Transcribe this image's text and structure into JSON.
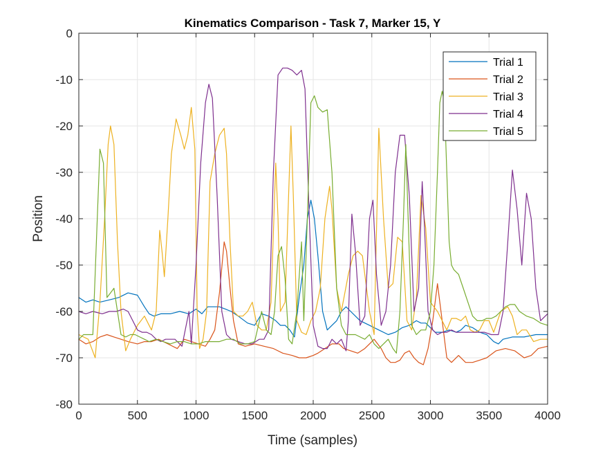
{
  "chart_data": {
    "type": "line",
    "title": "Kinematics Comparison - Task 7, Marker 15, Y",
    "xlabel": "Time (samples)",
    "ylabel": "Position",
    "xlim": [
      0,
      4000
    ],
    "ylim": [
      -80,
      0
    ],
    "xticks": [
      0,
      500,
      1000,
      1500,
      2000,
      2500,
      3000,
      3500,
      4000
    ],
    "yticks": [
      0,
      -10,
      -20,
      -30,
      -40,
      -50,
      -60,
      -70,
      -80
    ],
    "grid": true,
    "legend_position": "top-right",
    "series": [
      {
        "name": "Trial 1",
        "color": "#0072BD",
        "x": [
          0,
          60,
          120,
          180,
          260,
          340,
          420,
          500,
          560,
          600,
          640,
          700,
          780,
          860,
          940,
          1000,
          1050,
          1100,
          1200,
          1250,
          1300,
          1360,
          1440,
          1500,
          1560,
          1620,
          1680,
          1720,
          1760,
          1800,
          1840,
          1880,
          1920,
          1950,
          1980,
          2010,
          2040,
          2080,
          2120,
          2160,
          2200,
          2240,
          2280,
          2320,
          2400,
          2480,
          2560,
          2640,
          2700,
          2760,
          2820,
          2880,
          2920,
          2960,
          3000,
          3040,
          3100,
          3160,
          3220,
          3260,
          3300,
          3360,
          3420,
          3480,
          3540,
          3580,
          3620,
          3700,
          3800,
          3900,
          4000
        ],
        "y": [
          -57,
          -58,
          -57.5,
          -58,
          -57.5,
          -57,
          -56,
          -56.5,
          -59,
          -60.5,
          -61,
          -60.5,
          -60.5,
          -60,
          -60.5,
          -59.5,
          -60.5,
          -59,
          -59,
          -59.5,
          -60,
          -61,
          -62.5,
          -63,
          -60.5,
          -61,
          -62,
          -63,
          -63,
          -64,
          -65.5,
          -57,
          -50,
          -40,
          -36,
          -40,
          -48,
          -60,
          -64,
          -63,
          -62,
          -60,
          -59,
          -60,
          -62,
          -63,
          -64,
          -65,
          -64.5,
          -63.5,
          -63,
          -62,
          -62.5,
          -62.5,
          -63.5,
          -64.5,
          -64.5,
          -64,
          -64.5,
          -64,
          -63,
          -63.5,
          -64.5,
          -65,
          -66.5,
          -67,
          -66,
          -65.5,
          -65.5,
          -65,
          -65
        ]
      },
      {
        "name": "Trial 2",
        "color": "#D95319",
        "x": [
          0,
          60,
          120,
          180,
          240,
          300,
          360,
          420,
          500,
          560,
          620,
          680,
          760,
          840,
          900,
          960,
          1020,
          1080,
          1120,
          1160,
          1200,
          1240,
          1260,
          1290,
          1320,
          1360,
          1420,
          1500,
          1580,
          1660,
          1740,
          1820,
          1880,
          1940,
          2000,
          2040,
          2100,
          2160,
          2220,
          2260,
          2320,
          2380,
          2440,
          2480,
          2520,
          2580,
          2620,
          2660,
          2700,
          2740,
          2780,
          2820,
          2860,
          2900,
          2940,
          2980,
          3020,
          3060,
          3100,
          3140,
          3180,
          3240,
          3300,
          3360,
          3420,
          3480,
          3560,
          3640,
          3720,
          3800,
          3860,
          3920,
          4000
        ],
        "y": [
          -66,
          -67,
          -66.5,
          -65.5,
          -65,
          -65.5,
          -66,
          -66.5,
          -67,
          -66.5,
          -66.5,
          -66,
          -67,
          -68,
          -66,
          -66.5,
          -67,
          -67.5,
          -66,
          -64,
          -56,
          -45,
          -47,
          -55,
          -62,
          -67,
          -67.5,
          -67,
          -67.5,
          -68,
          -69,
          -69.5,
          -70,
          -70,
          -69.5,
          -69,
          -68,
          -67,
          -67,
          -68,
          -68.5,
          -69,
          -68,
          -67,
          -66,
          -68,
          -70,
          -71,
          -71,
          -70.5,
          -69,
          -68.5,
          -70,
          -71,
          -71.5,
          -68,
          -62,
          -54,
          -62,
          -70,
          -71,
          -69.5,
          -71,
          -71,
          -70.5,
          -70,
          -68.5,
          -68,
          -68.5,
          -70,
          -69.5,
          -68,
          -67.5
        ]
      },
      {
        "name": "Trial 3",
        "color": "#EDB120",
        "x": [
          0,
          80,
          140,
          180,
          220,
          250,
          270,
          300,
          330,
          360,
          400,
          440,
          500,
          560,
          620,
          660,
          690,
          710,
          730,
          760,
          790,
          830,
          870,
          900,
          930,
          960,
          990,
          1010,
          1030,
          1060,
          1090,
          1120,
          1160,
          1200,
          1240,
          1260,
          1290,
          1320,
          1360,
          1400,
          1440,
          1480,
          1520,
          1560,
          1600,
          1640,
          1680,
          1700,
          1720,
          1760,
          1790,
          1810,
          1830,
          1860,
          1900,
          1940,
          1980,
          2020,
          2060,
          2100,
          2140,
          2160,
          2200,
          2240,
          2300,
          2340,
          2380,
          2420,
          2480,
          2520,
          2560,
          2600,
          2640,
          2680,
          2720,
          2760,
          2800,
          2840,
          2880,
          2920,
          2960,
          3000,
          3060,
          3100,
          3140,
          3180,
          3220,
          3260,
          3300,
          3340,
          3380,
          3420,
          3460,
          3500,
          3540,
          3600,
          3660,
          3700,
          3740,
          3780,
          3820,
          3880,
          3940,
          4000
        ],
        "y": [
          -65,
          -66,
          -70,
          -58,
          -40,
          -24,
          -20,
          -24,
          -45,
          -60,
          -68.5,
          -66,
          -63,
          -61,
          -64,
          -60,
          -42.5,
          -47,
          -52.5,
          -40,
          -26,
          -18.5,
          -22,
          -25,
          -22,
          -16,
          -25,
          -60,
          -68,
          -66,
          -60,
          -32,
          -26,
          -22,
          -20.5,
          -26,
          -45,
          -60,
          -61,
          -61,
          -60,
          -58,
          -63,
          -64,
          -64,
          -58,
          -28,
          -40,
          -60,
          -58,
          -35,
          -20,
          -35,
          -62,
          -64.5,
          -65,
          -62,
          -60,
          -55,
          -40,
          -33,
          -38,
          -55,
          -60,
          -52,
          -48,
          -47,
          -48,
          -60,
          -65,
          -20.5,
          -40,
          -55,
          -54,
          -44,
          -45,
          -62,
          -64,
          -57,
          -35,
          -42,
          -58,
          -60,
          -62,
          -64,
          -61.5,
          -61.5,
          -62,
          -61,
          -64,
          -64.5,
          -64,
          -62,
          -62,
          -64.5,
          -60,
          -59,
          -61,
          -65,
          -64,
          -64,
          -66.5,
          -66,
          -66
        ]
      },
      {
        "name": "Trial 4",
        "color": "#7E2F8E",
        "x": [
          0,
          60,
          120,
          200,
          260,
          320,
          380,
          420,
          460,
          500,
          540,
          580,
          620,
          660,
          700,
          740,
          780,
          820,
          880,
          940,
          960,
          1000,
          1040,
          1080,
          1110,
          1140,
          1180,
          1220,
          1260,
          1300,
          1360,
          1420,
          1480,
          1540,
          1580,
          1620,
          1660,
          1700,
          1740,
          1780,
          1820,
          1860,
          1900,
          1930,
          1960,
          2000,
          2040,
          2080,
          2120,
          2160,
          2200,
          2240,
          2280,
          2300,
          2330,
          2360,
          2400,
          2440,
          2480,
          2510,
          2540,
          2580,
          2620,
          2660,
          2700,
          2740,
          2780,
          2820,
          2860,
          2900,
          2930,
          2950,
          2980,
          3020,
          3060,
          3100,
          3140,
          3180,
          3220,
          3260,
          3300,
          3340,
          3400,
          3460,
          3520,
          3580,
          3620,
          3660,
          3700,
          3740,
          3780,
          3820,
          3860,
          3900,
          3940,
          3980,
          4000
        ],
        "y": [
          -60,
          -60.5,
          -60,
          -60.5,
          -60,
          -60,
          -59.5,
          -60,
          -62,
          -64,
          -64.5,
          -64.5,
          -65,
          -66,
          -66.5,
          -66,
          -66,
          -66,
          -67.5,
          -60,
          -67,
          -50,
          -28,
          -15,
          -11,
          -14,
          -35,
          -60,
          -65,
          -66,
          -66.5,
          -67,
          -67,
          -66,
          -66,
          -64,
          -30,
          -9,
          -7.5,
          -7.5,
          -8,
          -9,
          -8,
          -12,
          -35,
          -63,
          -67.5,
          -68,
          -68,
          -66,
          -67,
          -66,
          -68.5,
          -62,
          -39,
          -47,
          -63,
          -61,
          -40,
          -36,
          -52,
          -63,
          -60,
          -50,
          -30,
          -22,
          -22,
          -35,
          -60,
          -55,
          -32,
          -42,
          -60,
          -64,
          -65,
          -64.5,
          -64.5,
          -64,
          -64.5,
          -64.5,
          -64.5,
          -64.5,
          -64.5,
          -64.5,
          -65,
          -65,
          -60,
          -45,
          -29.5,
          -38,
          -50,
          -34.5,
          -40,
          -55,
          -62,
          -61,
          -60.5
        ]
      },
      {
        "name": "Trial 5",
        "color": "#77AC30",
        "x": [
          0,
          40,
          80,
          120,
          150,
          180,
          210,
          240,
          270,
          300,
          330,
          360,
          400,
          440,
          480,
          520,
          560,
          600,
          660,
          720,
          780,
          840,
          900,
          960,
          1020,
          1080,
          1140,
          1200,
          1260,
          1320,
          1380,
          1440,
          1500,
          1560,
          1600,
          1640,
          1670,
          1700,
          1730,
          1760,
          1790,
          1820,
          1860,
          1900,
          1920,
          1950,
          1980,
          2010,
          2040,
          2080,
          2120,
          2160,
          2200,
          2240,
          2280,
          2320,
          2360,
          2400,
          2440,
          2480,
          2520,
          2560,
          2600,
          2640,
          2680,
          2710,
          2740,
          2770,
          2790,
          2810,
          2840,
          2880,
          2920,
          2960,
          3000,
          3030,
          3060,
          3080,
          3100,
          3120,
          3140,
          3160,
          3180,
          3200,
          3240,
          3280,
          3320,
          3360,
          3400,
          3440,
          3480,
          3520,
          3560,
          3600,
          3640,
          3680,
          3720,
          3760,
          3820,
          3880,
          3940,
          4000
        ],
        "y": [
          -66,
          -65,
          -65,
          -65,
          -45,
          -25,
          -28,
          -57,
          -56,
          -55,
          -60,
          -65,
          -65.5,
          -65,
          -65,
          -65.5,
          -66,
          -66.5,
          -66,
          -66.5,
          -67,
          -66.5,
          -66.5,
          -67,
          -67,
          -66.5,
          -66.5,
          -66.5,
          -66,
          -66,
          -67,
          -67,
          -66.5,
          -60,
          -64,
          -65,
          -60,
          -48,
          -46,
          -53,
          -66,
          -67,
          -60,
          -45,
          -62,
          -40,
          -15,
          -13.5,
          -16,
          -17,
          -16.5,
          -30,
          -55,
          -63,
          -65,
          -65,
          -65,
          -65.5,
          -66,
          -65,
          -67,
          -68,
          -67,
          -66,
          -68,
          -69,
          -60,
          -40,
          -24,
          -40,
          -63,
          -65,
          -64,
          -64,
          -60,
          -50,
          -30,
          -15,
          -12.5,
          -15,
          -30,
          -45,
          -50,
          -51,
          -52,
          -55,
          -58,
          -61,
          -62,
          -62,
          -61.5,
          -61.5,
          -61,
          -60,
          -59,
          -58.5,
          -58.5,
          -60,
          -61,
          -61.5,
          -62.5,
          -63
        ]
      }
    ]
  }
}
